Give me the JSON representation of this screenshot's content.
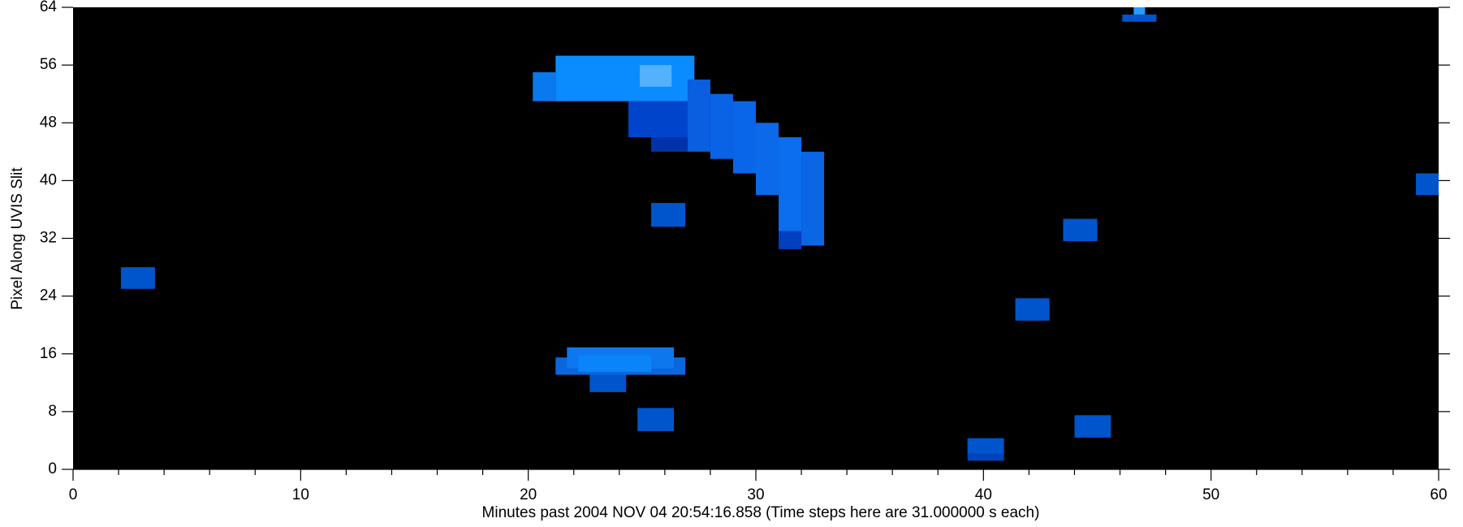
{
  "chart_data": {
    "type": "image",
    "xlabel": "Minutes past 2004 NOV 04 20:54:16.858 (Time steps here are 31.000000 s each)",
    "ylabel": "Pixel Along UVIS Slit",
    "xlim": [
      0,
      60
    ],
    "ylim": [
      0,
      64
    ],
    "xticks": [
      0,
      10,
      20,
      30,
      40,
      50,
      60
    ],
    "xminorticks": [
      2,
      4,
      6,
      8,
      12,
      14,
      16,
      18,
      22,
      24,
      26,
      28,
      32,
      34,
      36,
      38,
      42,
      44,
      46,
      48,
      52,
      54,
      56,
      58
    ],
    "yticks": [
      0,
      8,
      16,
      24,
      32,
      40,
      48,
      56,
      64
    ],
    "background": "#000000",
    "rects": [
      {
        "x": [
          2.1,
          3.6
        ],
        "y": [
          25,
          28
        ],
        "color": "#0055cc"
      },
      {
        "x": [
          25.4,
          26.9
        ],
        "y": [
          33.6,
          36.9
        ],
        "color": "#0055cc"
      },
      {
        "x": [
          24.8,
          26.4
        ],
        "y": [
          5.3,
          8.5
        ],
        "color": "#0055cc"
      },
      {
        "x": [
          22.7,
          24.3
        ],
        "y": [
          10.7,
          13.6
        ],
        "color": "#0055cc"
      },
      {
        "x": [
          39.3,
          40.9
        ],
        "y": [
          1.2,
          4.3
        ],
        "color": "#0044bb"
      },
      {
        "x": [
          39.3,
          40.9
        ],
        "y": [
          2.2,
          4.3
        ],
        "color": "#0055cc"
      },
      {
        "x": [
          41.4,
          42.9
        ],
        "y": [
          20.6,
          23.7
        ],
        "color": "#0055cc"
      },
      {
        "x": [
          43.5,
          45.0
        ],
        "y": [
          31.6,
          34.7
        ],
        "color": "#0055cc"
      },
      {
        "x": [
          44.0,
          45.6
        ],
        "y": [
          4.4,
          7.5
        ],
        "color": "#0055cc"
      },
      {
        "x": [
          59.0,
          60
        ],
        "y": [
          38.0,
          41.0
        ],
        "color": "#0055cc"
      },
      {
        "x": [
          46.1,
          47.6
        ],
        "y": [
          62,
          63
        ],
        "color": "#0055cc"
      },
      {
        "x": [
          46.6,
          47.1
        ],
        "y": [
          63,
          64
        ],
        "color": "#2a9cff"
      },
      {
        "x": [
          21.2,
          26.9
        ],
        "y": [
          13.1,
          15.5
        ],
        "color": "#0a66dd"
      },
      {
        "x": [
          21.7,
          26.4
        ],
        "y": [
          14,
          16.9
        ],
        "color": "#0d78ee"
      },
      {
        "x": [
          22.2,
          25.4
        ],
        "y": [
          13.5,
          15.8
        ],
        "color": "#0a84f8"
      },
      {
        "x": [
          20.2,
          21.2
        ],
        "y": [
          51,
          55
        ],
        "color": "#0a78ee"
      },
      {
        "x": [
          21.2,
          27.3
        ],
        "y": [
          51,
          57.3
        ],
        "color": "#0a8cff"
      },
      {
        "x": [
          24.9,
          26.3
        ],
        "y": [
          53,
          56
        ],
        "color": "#55b0ff"
      },
      {
        "x": [
          24.4,
          27.3
        ],
        "y": [
          46,
          51
        ],
        "color": "#0044cc"
      },
      {
        "x": [
          25.4,
          27.0
        ],
        "y": [
          44,
          46
        ],
        "color": "#0033aa"
      },
      {
        "x": [
          27.0,
          28.0
        ],
        "y": [
          44,
          54
        ],
        "color": "#0a5ee0"
      },
      {
        "x": [
          28.0,
          29.0
        ],
        "y": [
          43,
          52
        ],
        "color": "#0a62e4"
      },
      {
        "x": [
          29.0,
          30.0
        ],
        "y": [
          41,
          51
        ],
        "color": "#0a66e8"
      },
      {
        "x": [
          30.0,
          31.0
        ],
        "y": [
          38,
          48
        ],
        "color": "#0a6aea"
      },
      {
        "x": [
          31.0,
          32.0
        ],
        "y": [
          32,
          46
        ],
        "color": "#0a6eee"
      },
      {
        "x": [
          31.0,
          32.0
        ],
        "y": [
          30.5,
          33
        ],
        "color": "#0040c0"
      },
      {
        "x": [
          32.0,
          33.0
        ],
        "y": [
          31,
          44
        ],
        "color": "#0a66e4"
      }
    ]
  }
}
